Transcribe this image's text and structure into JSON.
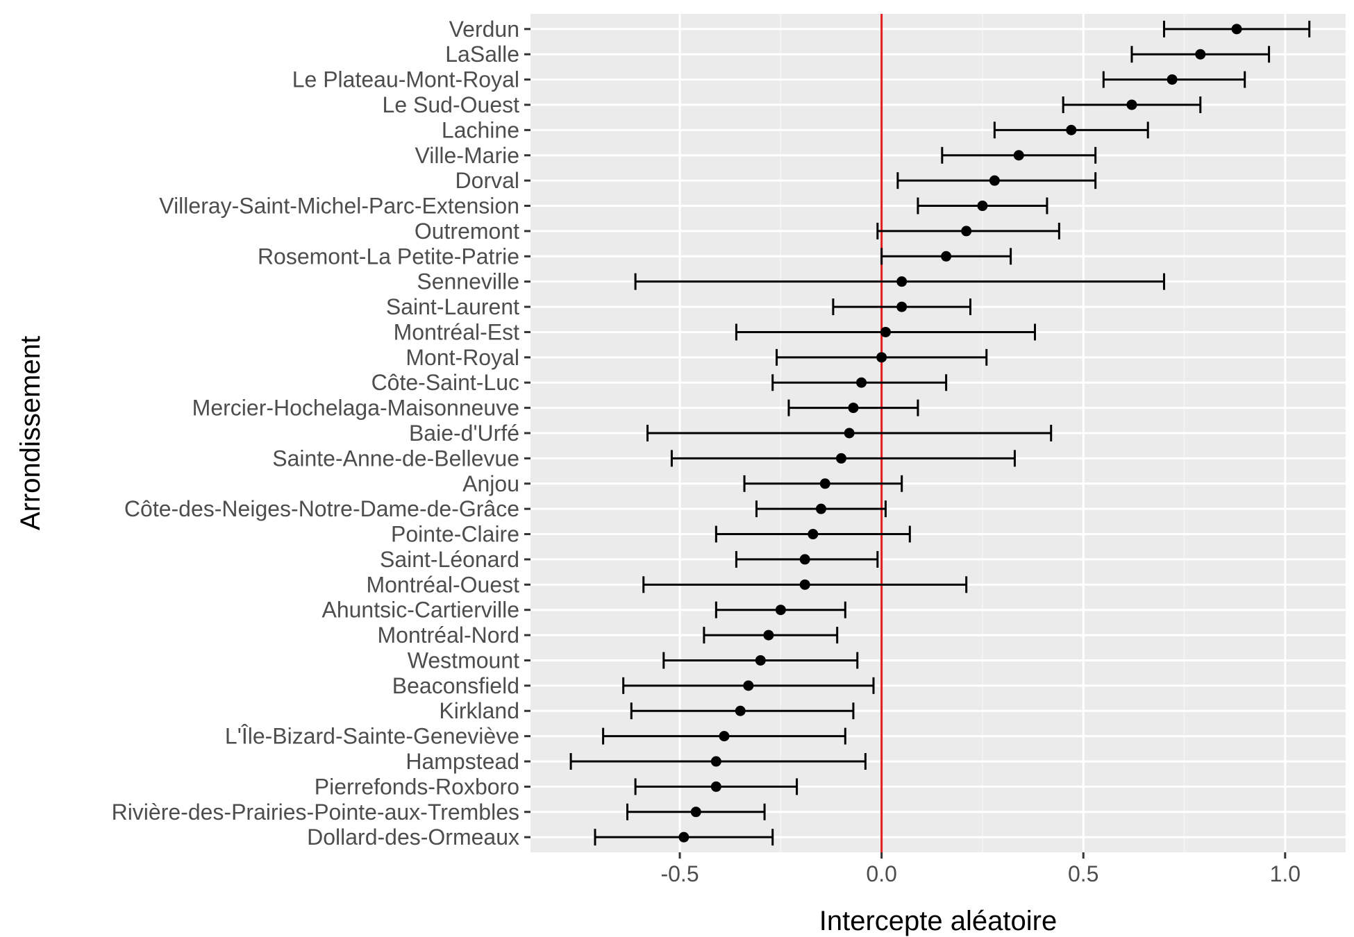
{
  "chart_data": {
    "type": "scatter",
    "variant": "point-with-horizontal-error-bars",
    "xlabel": "Intercepte aléatoire",
    "ylabel": "Arrondissement",
    "xlim": [
      -0.87,
      1.15
    ],
    "xticks": [
      -0.5,
      0.0,
      0.5,
      1.0
    ],
    "xtick_labels": [
      "-0.5",
      "0.0",
      "0.5",
      "1.0"
    ],
    "reference_line": {
      "x": 0,
      "color": "#e41a1c"
    },
    "grid": true,
    "panel_background": "#ebebeb",
    "point_color": "#000000",
    "categories": [
      "Verdun",
      "LaSalle",
      "Le Plateau-Mont-Royal",
      "Le Sud-Ouest",
      "Lachine",
      "Ville-Marie",
      "Dorval",
      "Villeray-Saint-Michel-Parc-Extension",
      "Outremont",
      "Rosemont-La Petite-Patrie",
      "Senneville",
      "Saint-Laurent",
      "Montréal-Est",
      "Mont-Royal",
      "Côte-Saint-Luc",
      "Mercier-Hochelaga-Maisonneuve",
      "Baie-d'Urfé",
      "Sainte-Anne-de-Bellevue",
      "Anjou",
      "Côte-des-Neiges-Notre-Dame-de-Grâce",
      "Pointe-Claire",
      "Saint-Léonard",
      "Montréal-Ouest",
      "Ahuntsic-Cartierville",
      "Montréal-Nord",
      "Westmount",
      "Beaconsfield",
      "Kirkland",
      "L'Île-Bizard-Sainte-Geneviève",
      "Hampstead",
      "Pierrefonds-Roxboro",
      "Rivière-des-Prairies-Pointe-aux-Trembles",
      "Dollard-des-Ormeaux"
    ],
    "values": [
      0.88,
      0.79,
      0.72,
      0.62,
      0.47,
      0.34,
      0.28,
      0.25,
      0.21,
      0.16,
      0.05,
      0.05,
      0.01,
      0.0,
      -0.05,
      -0.07,
      -0.08,
      -0.1,
      -0.14,
      -0.15,
      -0.17,
      -0.19,
      -0.19,
      -0.25,
      -0.28,
      -0.3,
      -0.33,
      -0.35,
      -0.39,
      -0.41,
      -0.41,
      -0.46,
      -0.49
    ],
    "lower": [
      0.7,
      0.62,
      0.55,
      0.45,
      0.28,
      0.15,
      0.04,
      0.09,
      -0.01,
      0.0,
      -0.61,
      -0.12,
      -0.36,
      -0.26,
      -0.27,
      -0.23,
      -0.58,
      -0.52,
      -0.34,
      -0.31,
      -0.41,
      -0.36,
      -0.59,
      -0.41,
      -0.44,
      -0.54,
      -0.64,
      -0.62,
      -0.69,
      -0.77,
      -0.61,
      -0.63,
      -0.71
    ],
    "upper": [
      1.06,
      0.96,
      0.9,
      0.79,
      0.66,
      0.53,
      0.53,
      0.41,
      0.44,
      0.32,
      0.7,
      0.22,
      0.38,
      0.26,
      0.16,
      0.09,
      0.42,
      0.33,
      0.05,
      0.01,
      0.07,
      -0.01,
      0.21,
      -0.09,
      -0.11,
      -0.06,
      -0.02,
      -0.07,
      -0.09,
      -0.04,
      -0.21,
      -0.29,
      -0.27
    ]
  }
}
